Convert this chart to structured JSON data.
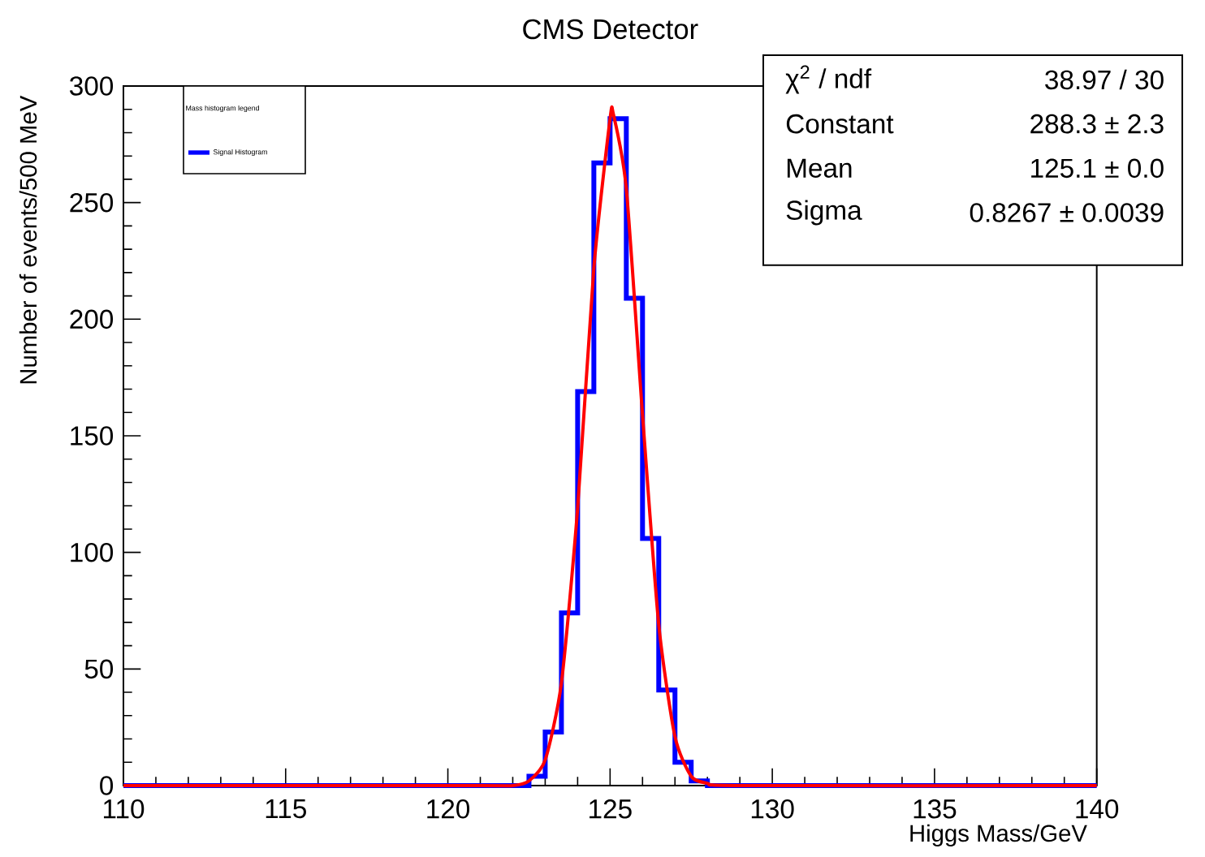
{
  "chart_data": {
    "type": "histogram",
    "title": "CMS Detector",
    "xlabel": "Higgs Mass/GeV",
    "ylabel": "Number of events/500 MeV",
    "legend_title": "Mass histogram legend",
    "bins": [
      110,
      110.5,
      111,
      111.5,
      112,
      112.5,
      113,
      113.5,
      114,
      114.5,
      115,
      115.5,
      116,
      116.5,
      117,
      117.5,
      118,
      118.5,
      119,
      119.5,
      120,
      120.5,
      121,
      121.5,
      122,
      122.5,
      123,
      123.5,
      124,
      124.5,
      125,
      125.5,
      126,
      126.5,
      127,
      127.5,
      128,
      128.5,
      129,
      129.5,
      130,
      130.5,
      131,
      131.5,
      132,
      132.5,
      133,
      133.5,
      134,
      134.5,
      135,
      135.5,
      136,
      136.5,
      137,
      137.5,
      138,
      138.5,
      139,
      139.5,
      140
    ],
    "series": [
      {
        "name": "Signal Histogram",
        "color": "#0000ff",
        "values": [
          0,
          0,
          0,
          0,
          0,
          0,
          0,
          0,
          0,
          0,
          0,
          0,
          0,
          0,
          0,
          0,
          0,
          0,
          0,
          0,
          0,
          0,
          0,
          0,
          0,
          4,
          23,
          74,
          169,
          267,
          286,
          209,
          106,
          41,
          10,
          2,
          0,
          0,
          0,
          0,
          0,
          0,
          0,
          0,
          0,
          0,
          0,
          0,
          0,
          0,
          0,
          0,
          0,
          0,
          0,
          0,
          0,
          0,
          0,
          0
        ]
      },
      {
        "type": "line",
        "color": "#ff0000",
        "x": [
          110,
          121,
          122,
          122.5,
          123,
          123.5,
          124,
          124.5,
          125,
          125.1,
          125.5,
          126,
          126.5,
          127,
          127.5,
          128,
          129,
          140
        ],
        "values": [
          0,
          0,
          0,
          2,
          11,
          44,
          119,
          222,
          286,
          288,
          256,
          159,
          69,
          21,
          4,
          1,
          0,
          0
        ]
      }
    ],
    "xlim": [
      110,
      140
    ],
    "xticks": [
      110,
      115,
      120,
      125,
      130,
      135,
      140
    ],
    "ylim": [
      0,
      300
    ],
    "yticks": [
      0,
      50,
      100,
      150,
      200,
      250,
      300
    ],
    "legend": "top left",
    "annotations": [
      "χ$^{2}$ / ndf",
      "38.97 / 30",
      "Constant",
      "288.3 ± 2.3",
      "Mean",
      "125.1 ± 0.0",
      "Sigma",
      "0.8267 ± 0.0039"
    ]
  }
}
